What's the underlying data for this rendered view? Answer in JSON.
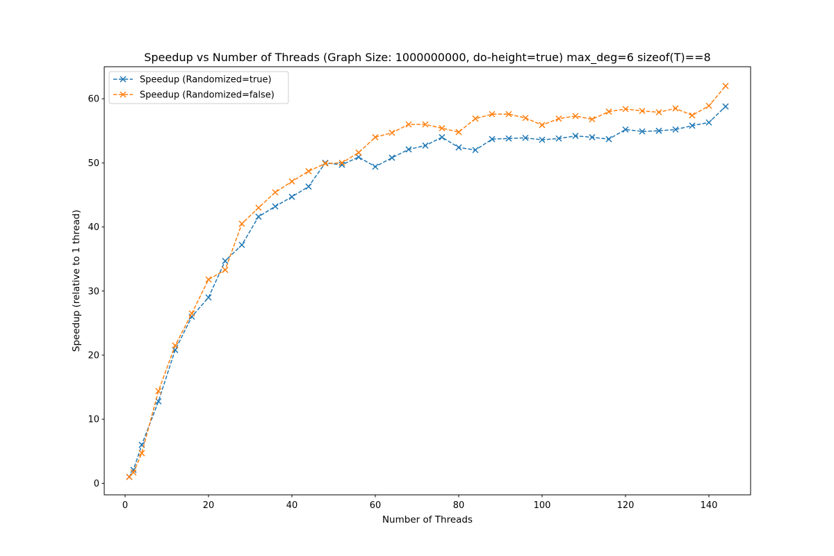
{
  "chart_data": {
    "type": "line",
    "title": "Speedup vs Number of Threads (Graph Size: 1000000000, do-height=true) max_deg=6 sizeof(T)==8",
    "xlabel": "Number of Threads",
    "ylabel": "Speedup (relative to 1 thread)",
    "xlim": [
      -5,
      150
    ],
    "ylim": [
      -1.8,
      65
    ],
    "xticks": [
      0,
      20,
      40,
      60,
      80,
      100,
      120,
      140
    ],
    "yticks": [
      0,
      10,
      20,
      30,
      40,
      50,
      60
    ],
    "grid": false,
    "legend_position": "upper-left",
    "x": [
      1,
      2,
      4,
      8,
      12,
      16,
      20,
      24,
      28,
      32,
      36,
      40,
      44,
      48,
      52,
      56,
      60,
      64,
      68,
      72,
      76,
      80,
      84,
      88,
      92,
      96,
      100,
      104,
      108,
      112,
      116,
      120,
      124,
      128,
      132,
      136,
      140,
      144
    ],
    "series": [
      {
        "name": "Speedup (Randomized=true)",
        "color": "#1f77b4",
        "linestyle": "dashed",
        "marker": "x",
        "values": [
          1.0,
          2.1,
          6.0,
          12.8,
          20.8,
          26.0,
          29.0,
          34.7,
          37.2,
          41.6,
          43.2,
          44.7,
          46.3,
          50.0,
          49.7,
          50.9,
          49.4,
          50.8,
          52.1,
          52.7,
          54.0,
          52.4,
          52.0,
          53.7,
          53.8,
          53.9,
          53.6,
          53.8,
          54.2,
          54.0,
          53.7,
          55.2,
          54.9,
          55.0,
          55.2,
          55.8,
          56.3,
          58.8
        ]
      },
      {
        "name": "Speedup (Randomized=false)",
        "color": "#ff7f0e",
        "linestyle": "dashed",
        "marker": "x",
        "values": [
          1.0,
          1.7,
          4.7,
          14.4,
          21.5,
          26.5,
          31.8,
          33.3,
          40.5,
          43.0,
          45.4,
          47.1,
          48.7,
          49.9,
          50.0,
          51.6,
          54.0,
          54.7,
          56.0,
          56.0,
          55.4,
          54.8,
          56.9,
          57.6,
          57.6,
          57.0,
          55.9,
          56.9,
          57.3,
          56.8,
          58.0,
          58.4,
          58.1,
          57.9,
          58.5,
          57.4,
          58.9,
          62.0
        ]
      }
    ]
  }
}
